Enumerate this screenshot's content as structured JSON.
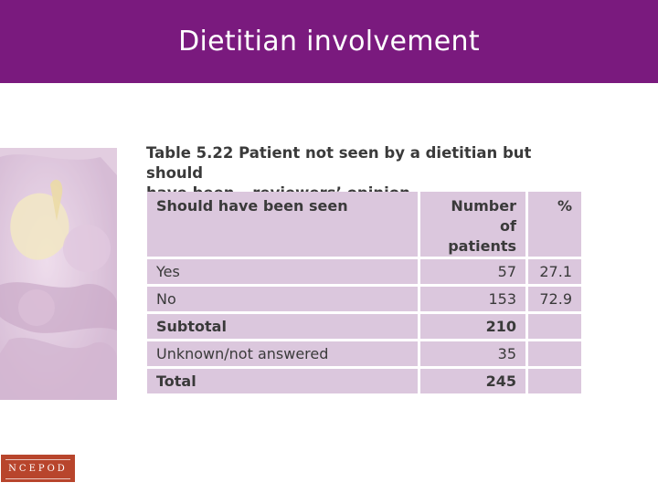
{
  "slide": {
    "title": "Dietitian involvement"
  },
  "table": {
    "caption_line1": "Table 5.22 Patient not seen by a dietitian but should",
    "caption_line2": "have been – reviewers’ opinion",
    "headers": {
      "col1": "Should have been seen",
      "col2_line1": "Number of",
      "col2_line2": "patients",
      "col3": "%"
    },
    "rows": [
      {
        "label": "Yes",
        "count": "57",
        "percent": "27.1"
      },
      {
        "label": "No",
        "count": "153",
        "percent": "72.9"
      },
      {
        "label": "Subtotal",
        "count": "210",
        "percent": ""
      },
      {
        "label": "Unknown/not answered",
        "count": "35",
        "percent": ""
      },
      {
        "label": "Total",
        "count": "245",
        "percent": ""
      }
    ]
  },
  "logo": {
    "text": "NCEPOD",
    "color": "#b8452c"
  },
  "colors": {
    "header": "#7a1a7e",
    "cell": "#dbc7dd"
  }
}
